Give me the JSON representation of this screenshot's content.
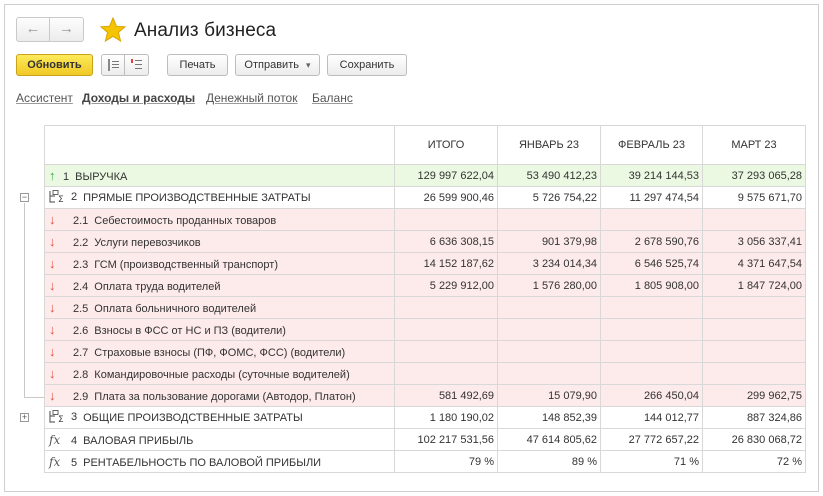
{
  "window": {
    "title": "Анализ бизнеса",
    "nav_back_glyph": "←",
    "nav_forward_glyph": "→"
  },
  "toolbar": {
    "refresh_label": "Обновить",
    "print_label": "Печать",
    "send_label": "Отправить",
    "send_dropdown_glyph": "▾",
    "save_label": "Сохранить"
  },
  "tabs": [
    {
      "label": "Ассистент",
      "active": false
    },
    {
      "label": "Доходы и расходы",
      "active": true
    },
    {
      "label": "Денежный поток",
      "active": false
    },
    {
      "label": "Баланс",
      "active": false
    }
  ],
  "table": {
    "columns": [
      "ИТОГО",
      "ЯНВАРЬ 23",
      "ФЕВРАЛЬ 23",
      "МАРТ 23"
    ],
    "rows": [
      {
        "code": "1",
        "name": "ВЫРУЧКА",
        "icon": "arrow-up-icon",
        "style": "green",
        "level": 0,
        "values": [
          "129 997 622,04",
          "53 490 412,23",
          "39 214 144,53",
          "37 293 065,28"
        ]
      },
      {
        "code": "2",
        "name": "ПРЯМЫЕ ПРОИЗВОДСТВЕННЫЕ ЗАТРАТЫ",
        "icon": "group-sum-icon",
        "style": "white",
        "level": 0,
        "expanded": true,
        "values": [
          "26 599 900,46",
          "5 726 754,22",
          "11 297 474,54",
          "9 575 671,70"
        ]
      },
      {
        "code": "2.1",
        "name": "Себестоимость проданных товаров",
        "icon": "arrow-down-icon",
        "style": "pink",
        "level": 1,
        "values": [
          "",
          "",
          "",
          ""
        ]
      },
      {
        "code": "2.2",
        "name": "Услуги перевозчиков",
        "icon": "arrow-down-icon",
        "style": "pink",
        "level": 1,
        "values": [
          "6 636 308,15",
          "901 379,98",
          "2 678 590,76",
          "3 056 337,41"
        ]
      },
      {
        "code": "2.3",
        "name": "ГСМ (производственный транспорт)",
        "icon": "arrow-down-icon",
        "style": "pink",
        "level": 1,
        "values": [
          "14 152 187,62",
          "3 234 014,34",
          "6 546 525,74",
          "4 371 647,54"
        ]
      },
      {
        "code": "2.4",
        "name": "Оплата труда водителей",
        "icon": "arrow-down-icon",
        "style": "pink",
        "level": 1,
        "values": [
          "5 229 912,00",
          "1 576 280,00",
          "1 805 908,00",
          "1 847 724,00"
        ]
      },
      {
        "code": "2.5",
        "name": "Оплата больничного водителей",
        "icon": "arrow-down-icon",
        "style": "pink",
        "level": 1,
        "values": [
          "",
          "",
          "",
          ""
        ]
      },
      {
        "code": "2.6",
        "name": "Взносы в ФСС от НС и ПЗ (водители)",
        "icon": "arrow-down-icon",
        "style": "pink",
        "level": 1,
        "values": [
          "",
          "",
          "",
          ""
        ]
      },
      {
        "code": "2.7",
        "name": "Страховые взносы (ПФ, ФОМС, ФСС) (водители)",
        "icon": "arrow-down-icon",
        "style": "pink",
        "level": 1,
        "values": [
          "",
          "",
          "",
          ""
        ]
      },
      {
        "code": "2.8",
        "name": "Командировочные расходы (суточные водителей)",
        "icon": "arrow-down-icon",
        "style": "pink",
        "level": 1,
        "values": [
          "",
          "",
          "",
          ""
        ]
      },
      {
        "code": "2.9",
        "name": "Плата за пользование дорогами (Автодор, Платон)",
        "icon": "arrow-down-icon",
        "style": "pink",
        "level": 1,
        "values": [
          "581 492,69",
          "15 079,90",
          "266 450,04",
          "299 962,75"
        ]
      },
      {
        "code": "3",
        "name": "ОБЩИЕ ПРОИЗВОДСТВЕННЫЕ ЗАТРАТЫ",
        "icon": "group-sum-icon",
        "style": "white",
        "level": 0,
        "expanded": false,
        "values": [
          "1 180 190,02",
          "148 852,39",
          "144 012,77",
          "887 324,86"
        ]
      },
      {
        "code": "4",
        "name": "ВАЛОВАЯ ПРИБЫЛЬ",
        "icon": "fx-icon",
        "style": "white",
        "level": 0,
        "values": [
          "102 217 531,56",
          "47 614 805,62",
          "27 772 657,22",
          "26 830 068,72"
        ]
      },
      {
        "code": "5",
        "name": "РЕНТАБЕЛЬНОСТЬ ПО ВАЛОВОЙ ПРИБЫЛИ",
        "icon": "fx-icon",
        "style": "white",
        "level": 0,
        "values": [
          "79 %",
          "89 %",
          "71 %",
          "72 %"
        ]
      }
    ]
  },
  "glyphs": {
    "arrow_up": "↑",
    "arrow_down": "↓",
    "fx": "fx",
    "minus": "−",
    "plus": "+"
  },
  "colors": {
    "primary_button": "#f3d031",
    "row_income": "#ebf9e3",
    "row_expense": "#fdeaea",
    "arrow_up": "#3aa53a",
    "arrow_down": "#e24a3c",
    "star": "#f5c400"
  }
}
